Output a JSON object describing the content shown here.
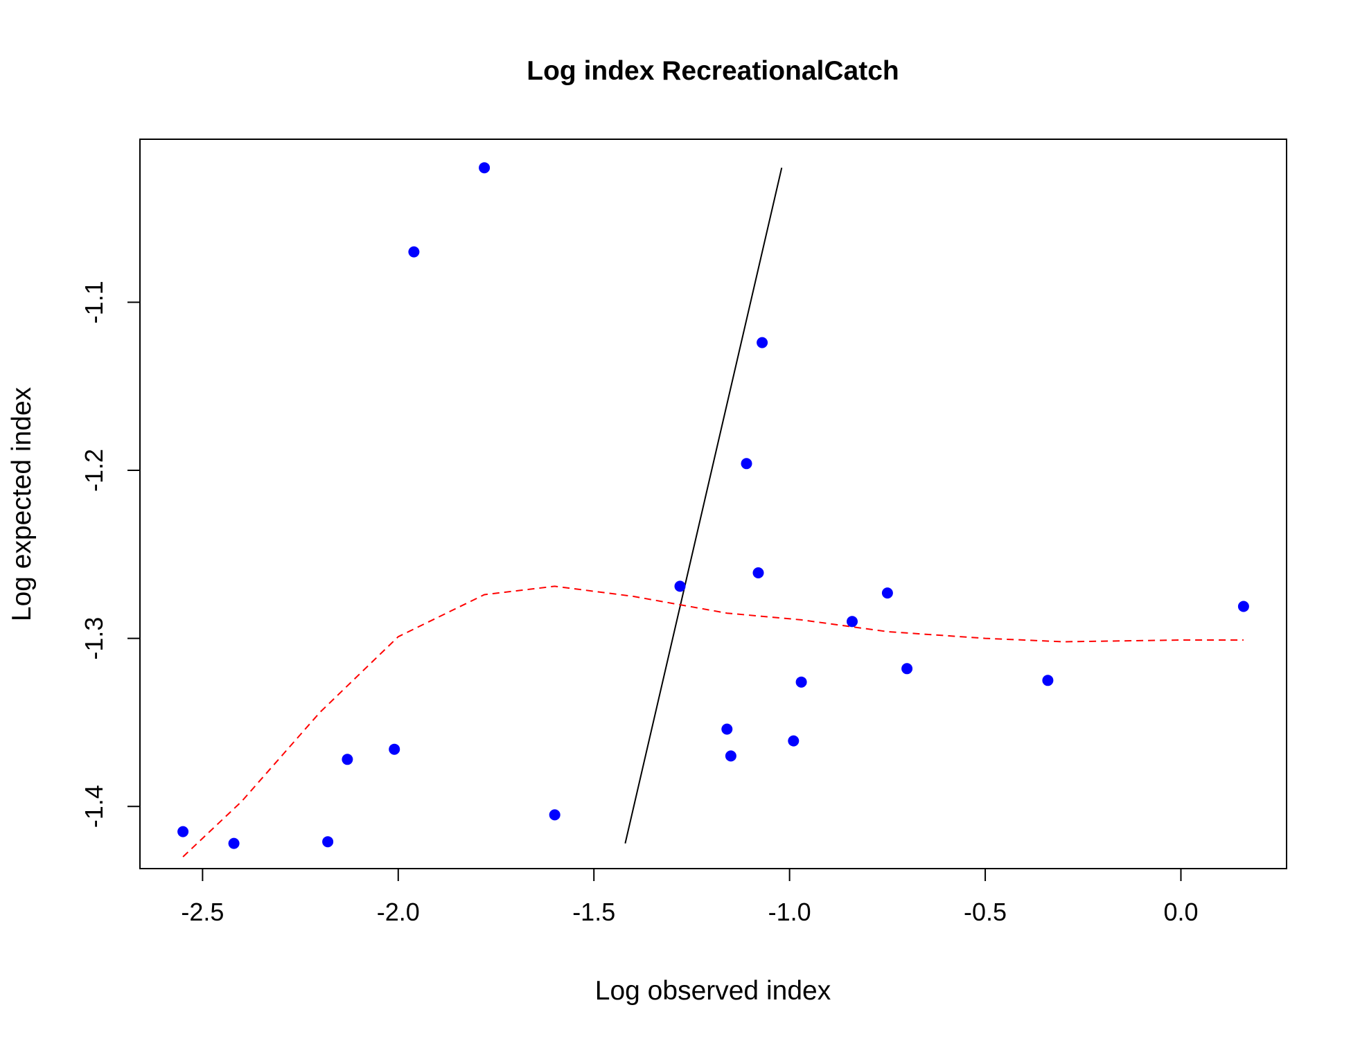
{
  "chart_data": {
    "type": "scatter",
    "title": "Log index RecreationalCatch",
    "xlabel": "Log observed index",
    "ylabel": "Log expected index",
    "xlim": [
      -2.66,
      0.27
    ],
    "ylim": [
      -1.437,
      -1.003
    ],
    "grid": false,
    "legend": "none",
    "x_ticks": [
      "-2.5",
      "-2.0",
      "-1.5",
      "-1.0",
      "-0.5",
      "0.0"
    ],
    "y_ticks": [
      "-1.1",
      "-1.2",
      "-1.3",
      "-1.4"
    ],
    "series": [
      {
        "type": "scatter",
        "color": "#0000ff",
        "points": [
          {
            "x": -2.55,
            "y": -1.415
          },
          {
            "x": -2.42,
            "y": -1.422
          },
          {
            "x": -2.18,
            "y": -1.421
          },
          {
            "x": -2.13,
            "y": -1.372
          },
          {
            "x": -2.01,
            "y": -1.366
          },
          {
            "x": -1.96,
            "y": -1.07
          },
          {
            "x": -1.78,
            "y": -1.02
          },
          {
            "x": -1.6,
            "y": -1.405
          },
          {
            "x": -1.28,
            "y": -1.269
          },
          {
            "x": -1.16,
            "y": -1.354
          },
          {
            "x": -1.15,
            "y": -1.37
          },
          {
            "x": -1.11,
            "y": -1.196
          },
          {
            "x": -1.08,
            "y": -1.261
          },
          {
            "x": -1.07,
            "y": -1.124
          },
          {
            "x": -0.99,
            "y": -1.361
          },
          {
            "x": -0.97,
            "y": -1.326
          },
          {
            "x": -0.84,
            "y": -1.29
          },
          {
            "x": -0.75,
            "y": -1.273
          },
          {
            "x": -0.7,
            "y": -1.318
          },
          {
            "x": -0.34,
            "y": -1.325
          },
          {
            "x": 0.16,
            "y": -1.281
          }
        ]
      },
      {
        "type": "line",
        "color": "#000000",
        "dash": "solid",
        "points": [
          {
            "x": -1.42,
            "y": -1.422
          },
          {
            "x": -1.02,
            "y": -1.02
          }
        ]
      },
      {
        "type": "line",
        "color": "#ff0000",
        "dash": "dashed",
        "points": [
          {
            "x": -2.55,
            "y": -1.43
          },
          {
            "x": -2.4,
            "y": -1.397
          },
          {
            "x": -2.2,
            "y": -1.344
          },
          {
            "x": -2.0,
            "y": -1.299
          },
          {
            "x": -1.78,
            "y": -1.274
          },
          {
            "x": -1.6,
            "y": -1.269
          },
          {
            "x": -1.4,
            "y": -1.275
          },
          {
            "x": -1.16,
            "y": -1.285
          },
          {
            "x": -0.97,
            "y": -1.289
          },
          {
            "x": -0.75,
            "y": -1.296
          },
          {
            "x": -0.5,
            "y": -1.3
          },
          {
            "x": -0.3,
            "y": -1.302
          },
          {
            "x": 0.0,
            "y": -1.301
          },
          {
            "x": 0.16,
            "y": -1.301
          }
        ]
      }
    ]
  }
}
